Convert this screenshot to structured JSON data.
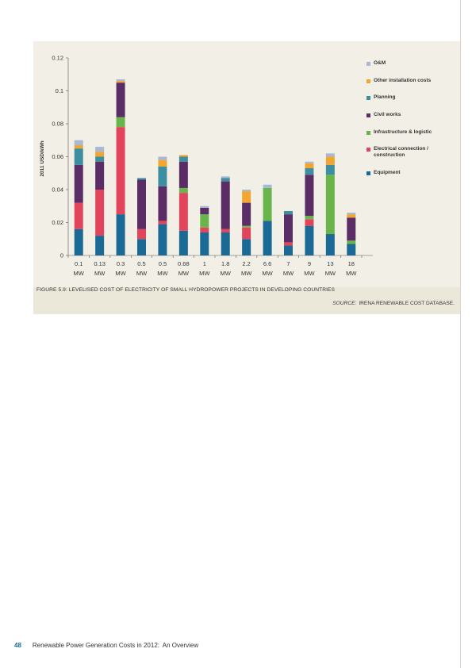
{
  "chart_data": {
    "type": "bar",
    "stacked": true,
    "ylabel": "2011 USD/kWh",
    "ylim": [
      0,
      0.12
    ],
    "yticks": [
      "0",
      "0.02",
      "0.04",
      "0.06",
      "0.08",
      "0.1",
      "0.12"
    ],
    "categories": [
      "0.1 MW",
      "0.13 MW",
      "0.3 MW",
      "0.5 MW",
      "0.5 MW",
      "0.68 MW",
      "1 MW",
      "1.8 MW",
      "2.2 MW",
      "6.6 MW",
      "7 MW",
      "9 MW",
      "13 MW",
      "18 MW"
    ],
    "category_lines": [
      [
        "0.1",
        "MW"
      ],
      [
        "0.13",
        "MW"
      ],
      [
        "0.3",
        "MW"
      ],
      [
        "0.5",
        "MW"
      ],
      [
        "0.5",
        "MW"
      ],
      [
        "0.68",
        "MW"
      ],
      [
        "1",
        "MW"
      ],
      [
        "1.8",
        "MW"
      ],
      [
        "2.2",
        "MW"
      ],
      [
        "6.6",
        "MW"
      ],
      [
        "7",
        "MW"
      ],
      [
        "9",
        "MW"
      ],
      [
        "13",
        "MW"
      ],
      [
        "18",
        "MW"
      ]
    ],
    "series": [
      {
        "name": "Equipment",
        "color": "#1b6a95",
        "values": [
          0.016,
          0.012,
          0.025,
          0.01,
          0.019,
          0.015,
          0.014,
          0.014,
          0.01,
          0.021,
          0.006,
          0.018,
          0.013,
          0.007
        ]
      },
      {
        "name": "Electrical connection / construction",
        "color": "#e2445c",
        "values": [
          0.016,
          0.028,
          0.053,
          0.006,
          0.002,
          0.023,
          0.003,
          0.002,
          0.007,
          0.0,
          0.002,
          0.004,
          0.0,
          0.0
        ]
      },
      {
        "name": "Infrastructure & logistic",
        "color": "#6ab44c",
        "values": [
          0.0,
          0.0,
          0.006,
          0.0,
          0.0,
          0.003,
          0.008,
          0.0,
          0.001,
          0.02,
          0.0,
          0.002,
          0.036,
          0.002
        ]
      },
      {
        "name": "Civil works",
        "color": "#5b2d66",
        "values": [
          0.023,
          0.017,
          0.021,
          0.03,
          0.021,
          0.016,
          0.004,
          0.029,
          0.014,
          0.0,
          0.017,
          0.025,
          0.0,
          0.014
        ]
      },
      {
        "name": "Planning",
        "color": "#3d8ea0",
        "values": [
          0.01,
          0.003,
          0.0,
          0.001,
          0.012,
          0.003,
          0.0,
          0.002,
          0.0,
          0.0,
          0.002,
          0.004,
          0.006,
          0.0
        ]
      },
      {
        "name": "Other installation costs",
        "color": "#f0a631",
        "values": [
          0.002,
          0.003,
          0.001,
          0.0,
          0.004,
          0.001,
          0.0,
          0.0,
          0.007,
          0.0,
          0.0,
          0.003,
          0.005,
          0.002
        ]
      },
      {
        "name": "O&M",
        "color": "#a7b9d6",
        "values": [
          0.003,
          0.003,
          0.001,
          0.0,
          0.002,
          0.0,
          0.001,
          0.001,
          0.001,
          0.002,
          0.0,
          0.001,
          0.002,
          0.001
        ]
      }
    ],
    "legend_order": [
      "O&M",
      "Other installation costs",
      "Planning",
      "Civil works",
      "Infrastructure & logistic",
      "Electrical connection / construction",
      "Equipment"
    ],
    "legend_placement": "right",
    "grid": false
  },
  "caption": "Figure 5.9: Levelised cost of electricity of small hydropower projects in developing countries",
  "source_label": "Source:",
  "source_text": "IRENA Renewable Cost Database.",
  "footer": {
    "page_number": "48",
    "doc_title": "Renewable Power Generation Costs in 2012:",
    "doc_subtitle": "An Overview"
  },
  "colors": {
    "panel_bg": "#f2f0e6",
    "caption_band": "#ebe8da",
    "page_number": "#1b6a95"
  }
}
